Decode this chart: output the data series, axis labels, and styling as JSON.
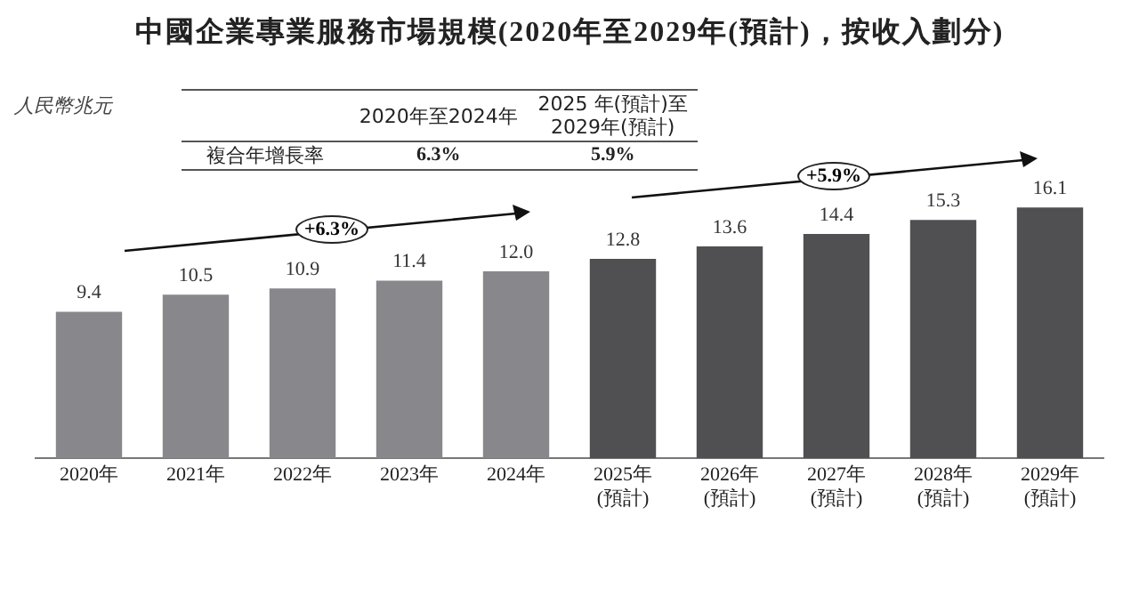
{
  "chart_data": {
    "type": "bar",
    "title": "中國企業專業服務市場規模(2020年至2029年(預計)，按收入劃分)",
    "ylabel": "人民幣兆元",
    "categories": [
      "2020年",
      "2021年",
      "2022年",
      "2023年",
      "2024年",
      "2025年\n(預計)",
      "2026年\n(預計)",
      "2027年\n(預計)",
      "2028年\n(預計)",
      "2029年\n(預計)"
    ],
    "values": [
      9.4,
      10.5,
      10.9,
      11.4,
      12.0,
      12.8,
      13.6,
      14.4,
      15.3,
      16.1
    ],
    "colors": [
      "#88888c",
      "#88888c",
      "#88888c",
      "#88888c",
      "#88888c",
      "#505053",
      "#505053",
      "#505053",
      "#505053",
      "#505053"
    ],
    "value_labels": [
      "9.4",
      "10.5",
      "10.9",
      "11.4",
      "12.0",
      "12.8",
      "13.6",
      "14.4",
      "15.3",
      "16.1"
    ],
    "grid": false,
    "legend": false,
    "tick_labels": "x",
    "annotations": [
      "2020年至2024年",
      "2025 年(預計)至\n2029年(預計)",
      "複合年增長率",
      "6.3%",
      "5.9%",
      "+6.3%",
      "+5.9%"
    ]
  }
}
